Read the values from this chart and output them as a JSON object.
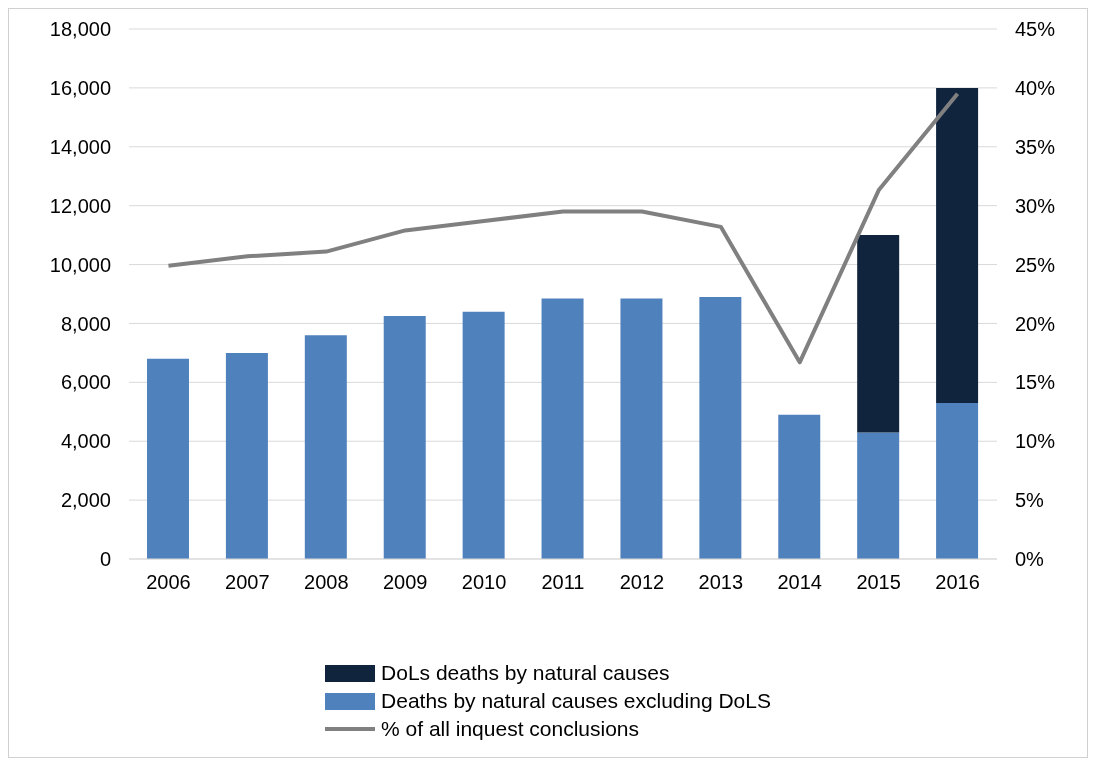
{
  "chart_data": {
    "type": "bar",
    "stacked": true,
    "categories": [
      "2006",
      "2007",
      "2008",
      "2009",
      "2010",
      "2011",
      "2012",
      "2013",
      "2014",
      "2015",
      "2016"
    ],
    "series": [
      {
        "name": "Deaths by natural causes excluding DoLS",
        "color": "#4f81bd",
        "values": [
          6800,
          7000,
          7600,
          8250,
          8400,
          8850,
          8850,
          8900,
          4900,
          4300,
          5300
        ]
      },
      {
        "name": "DoLs deaths by natural causes",
        "color": "#10243e",
        "values": [
          null,
          null,
          null,
          null,
          null,
          null,
          null,
          null,
          null,
          6700,
          10700
        ]
      },
      {
        "name": "% of all inquest conclusions",
        "type": "line",
        "axis": "y2",
        "color": "#808080",
        "values": [
          24.9,
          25.7,
          26.1,
          27.9,
          28.7,
          29.5,
          29.5,
          28.2,
          16.7,
          31.3,
          39.5
        ]
      }
    ],
    "ylim": [
      0,
      18000
    ],
    "yticks": [
      {
        "value": 0,
        "label": "0"
      },
      {
        "value": 2000,
        "label": "2,000"
      },
      {
        "value": 4000,
        "label": "4,000"
      },
      {
        "value": 6000,
        "label": "6,000"
      },
      {
        "value": 8000,
        "label": "8,000"
      },
      {
        "value": 10000,
        "label": "10,000"
      },
      {
        "value": 12000,
        "label": "12,000"
      },
      {
        "value": 14000,
        "label": "14,000"
      },
      {
        "value": 16000,
        "label": "16,000"
      },
      {
        "value": 18000,
        "label": "18,000"
      }
    ],
    "y2lim": [
      0,
      45
    ],
    "y2ticks": [
      {
        "value": 0,
        "label": "0%"
      },
      {
        "value": 5,
        "label": "5%"
      },
      {
        "value": 10,
        "label": "10%"
      },
      {
        "value": 15,
        "label": "15%"
      },
      {
        "value": 20,
        "label": "20%"
      },
      {
        "value": 25,
        "label": "25%"
      },
      {
        "value": 30,
        "label": "30%"
      },
      {
        "value": 35,
        "label": "35%"
      },
      {
        "value": 40,
        "label": "40%"
      },
      {
        "value": 45,
        "label": "45%"
      }
    ],
    "grid": "y",
    "legend": "bottom",
    "marker": "none"
  }
}
